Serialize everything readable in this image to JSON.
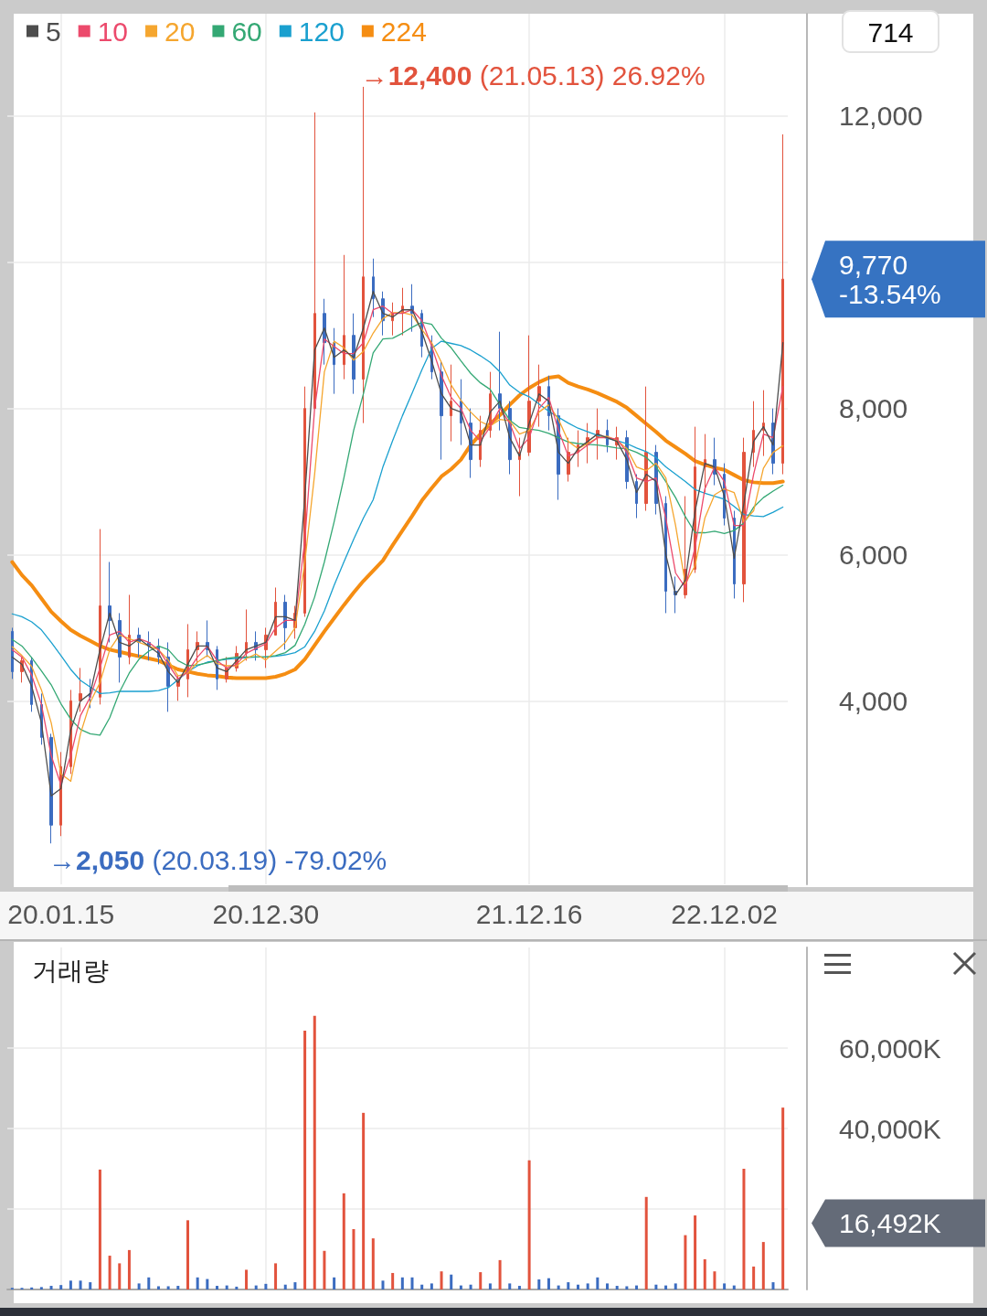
{
  "chart_data": [
    {
      "type": "candlestick",
      "categories": [
        null,
        null,
        null,
        null,
        null,
        "20.01.15",
        null,
        null,
        null,
        null,
        null,
        null,
        null,
        null,
        null,
        null,
        null,
        null,
        null,
        null,
        null,
        null,
        null,
        null,
        null,
        null,
        "20.12.30",
        null,
        null,
        null,
        null,
        null,
        null,
        null,
        null,
        null,
        null,
        null,
        null,
        null,
        null,
        null,
        null,
        null,
        null,
        null,
        null,
        null,
        null,
        null,
        null,
        null,
        null,
        "21.12.16",
        null,
        null,
        null,
        null,
        null,
        null,
        null,
        null,
        null,
        null,
        null,
        null,
        null,
        null,
        null,
        null,
        null,
        null,
        null,
        "22.12.02",
        null,
        null,
        null,
        null,
        null,
        null
      ],
      "series": [
        {
          "ohlc": [
            [
              4950,
              5000,
              4300,
              4400
            ],
            [
              4400,
              4600,
              4250,
              4550
            ],
            [
              4550,
              4600,
              3850,
              3950
            ],
            [
              3950,
              4100,
              3400,
              3500
            ],
            [
              3500,
              3550,
              2050,
              2300
            ],
            [
              2300,
              3300,
              2150,
              3100
            ],
            [
              3100,
              4150,
              3000,
              4000
            ],
            [
              4000,
              4450,
              3850,
              4100
            ],
            [
              4100,
              4300,
              3900,
              4050
            ],
            [
              4050,
              6350,
              3950,
              5300
            ],
            [
              5300,
              5900,
              4800,
              5100
            ],
            [
              5100,
              5200,
              4250,
              4600
            ],
            [
              4600,
              5450,
              4500,
              4900
            ],
            [
              4900,
              5000,
              4600,
              4800
            ],
            [
              4800,
              4950,
              4550,
              4750
            ],
            [
              4750,
              4850,
              4500,
              4600
            ],
            [
              4600,
              4800,
              3850,
              4200
            ],
            [
              4200,
              4350,
              4000,
              4300
            ],
            [
              4300,
              5050,
              4050,
              4700
            ],
            [
              4700,
              4950,
              4500,
              4800
            ],
            [
              4800,
              5100,
              4600,
              4700
            ],
            [
              4700,
              4750,
              4150,
              4300
            ],
            [
              4300,
              4600,
              4250,
              4450
            ],
            [
              4450,
              4750,
              4400,
              4650
            ],
            [
              4650,
              5250,
              4550,
              4800
            ],
            [
              4800,
              4950,
              4550,
              4700
            ],
            [
              4700,
              5000,
              4450,
              4900
            ],
            [
              4900,
              5550,
              4900,
              5350
            ],
            [
              5350,
              5450,
              4700,
              5000
            ],
            [
              5000,
              5300,
              4850,
              5200
            ],
            [
              5200,
              8300,
              5150,
              8000
            ],
            [
              8000,
              12050,
              8000,
              9300
            ],
            [
              9300,
              9500,
              8600,
              8900
            ],
            [
              8900,
              9100,
              8200,
              8600
            ],
            [
              8600,
              10100,
              8400,
              9000
            ],
            [
              9000,
              9300,
              8200,
              8400
            ],
            [
              8400,
              12400,
              7800,
              9800
            ],
            [
              9800,
              10050,
              9250,
              9500
            ],
            [
              9500,
              9600,
              9000,
              9200
            ],
            [
              9200,
              9450,
              9000,
              9300
            ],
            [
              9300,
              9650,
              9000,
              9400
            ],
            [
              9400,
              9700,
              9050,
              9300
            ],
            [
              9300,
              9350,
              8700,
              8850
            ],
            [
              8850,
              9000,
              8400,
              8500
            ],
            [
              8500,
              8650,
              7300,
              7900
            ],
            [
              7900,
              8600,
              7550,
              8100
            ],
            [
              8100,
              8400,
              7500,
              7800
            ],
            [
              7800,
              8000,
              7050,
              7300
            ],
            [
              7300,
              7900,
              7200,
              7700
            ],
            [
              7700,
              8500,
              7600,
              8200
            ],
            [
              8200,
              9050,
              7700,
              8000
            ],
            [
              8000,
              8100,
              7100,
              7300
            ],
            [
              7300,
              7600,
              6800,
              7400
            ],
            [
              7400,
              9000,
              7350,
              8100
            ],
            [
              8100,
              8600,
              7750,
              8300
            ],
            [
              8300,
              8450,
              7700,
              7900
            ],
            [
              7900,
              8000,
              6750,
              7100
            ],
            [
              7100,
              7600,
              7000,
              7400
            ],
            [
              7400,
              7700,
              7200,
              7500
            ],
            [
              7500,
              7800,
              7250,
              7600
            ],
            [
              7600,
              8000,
              7300,
              7700
            ],
            [
              7700,
              7850,
              7400,
              7500
            ],
            [
              7500,
              7750,
              7300,
              7600
            ],
            [
              7600,
              7700,
              6900,
              7000
            ],
            [
              7000,
              7100,
              6500,
              6700
            ],
            [
              6700,
              8300,
              6600,
              7400
            ],
            [
              7400,
              7500,
              6550,
              6700
            ],
            [
              6700,
              6800,
              5200,
              5500
            ],
            [
              5500,
              5700,
              5200,
              5450
            ],
            [
              5450,
              6800,
              5400,
              5800
            ],
            [
              5800,
              7750,
              5750,
              7200
            ],
            [
              7200,
              7650,
              6850,
              7300
            ],
            [
              7300,
              7600,
              6950,
              7100
            ],
            [
              7100,
              7250,
              6400,
              6500
            ],
            [
              6500,
              6600,
              5400,
              5600
            ],
            [
              5600,
              7600,
              5350,
              7400
            ],
            [
              7400,
              8100,
              7200,
              7700
            ],
            [
              7700,
              8250,
              7350,
              7800
            ],
            [
              7800,
              8000,
              7100,
              7250
            ],
            [
              7250,
              11750,
              7100,
              9770
            ]
          ],
          "colors": [
            "#3b6cc0",
            "#e2533d",
            "#3b6cc0",
            "#3b6cc0",
            "#3b6cc0",
            "#e2533d",
            "#e2533d",
            "#e2533d",
            "#3b6cc0",
            "#e2533d",
            "#3b6cc0",
            "#3b6cc0",
            "#e2533d",
            "#3b6cc0",
            "#3b6cc0",
            "#3b6cc0",
            "#3b6cc0",
            "#e2533d",
            "#e2533d",
            "#e2533d",
            "#3b6cc0",
            "#3b6cc0",
            "#e2533d",
            "#e2533d",
            "#e2533d",
            "#3b6cc0",
            "#e2533d",
            "#e2533d",
            "#3b6cc0",
            "#e2533d",
            "#e2533d",
            "#e2533d",
            "#3b6cc0",
            "#3b6cc0",
            "#e2533d",
            "#3b6cc0",
            "#e2533d",
            "#3b6cc0",
            "#3b6cc0",
            "#e2533d",
            "#e2533d",
            "#3b6cc0",
            "#3b6cc0",
            "#3b6cc0",
            "#3b6cc0",
            "#e2533d",
            "#3b6cc0",
            "#3b6cc0",
            "#e2533d",
            "#e2533d",
            "#3b6cc0",
            "#3b6cc0",
            "#e2533d",
            "#e2533d",
            "#e2533d",
            "#3b6cc0",
            "#3b6cc0",
            "#e2533d",
            "#e2533d",
            "#e2533d",
            "#e2533d",
            "#3b6cc0",
            "#e2533d",
            "#3b6cc0",
            "#3b6cc0",
            "#e2533d",
            "#3b6cc0",
            "#3b6cc0",
            "#3b6cc0",
            "#e2533d",
            "#e2533d",
            "#e2533d",
            "#3b6cc0",
            "#3b6cc0",
            "#3b6cc0",
            "#e2533d",
            "#e2533d",
            "#e2533d",
            "#3b6cc0",
            "#e2533d"
          ]
        },
        {
          "type": "line",
          "name": "5",
          "color": "#4d4d4d",
          "values": [
            4600,
            4500,
            4200,
            3700,
            2700,
            2800,
            3600,
            4000,
            4100,
            4700,
            5200,
            4800,
            4750,
            4850,
            4750,
            4650,
            4400,
            4250,
            4500,
            4750,
            4750,
            4450,
            4400,
            4550,
            4700,
            4750,
            4800,
            5150,
            5150,
            5100,
            6800,
            8800,
            9100,
            8700,
            8800,
            8700,
            9100,
            9600,
            9300,
            9250,
            9350,
            9350,
            9050,
            8650,
            8200,
            8000,
            7950,
            7500,
            7500,
            7950,
            8100,
            7600,
            7350,
            7800,
            8200,
            8100,
            7400,
            7250,
            7450,
            7550,
            7650,
            7600,
            7550,
            7300,
            6850,
            7100,
            7000,
            6000,
            5450,
            5650,
            6600,
            7250,
            7200,
            6800,
            5950,
            6700,
            7550,
            7750,
            7500,
            8900
          ]
        },
        {
          "type": "line",
          "name": "10",
          "color": "#ec4a6c",
          "values": [
            4700,
            4600,
            4350,
            3950,
            3250,
            2850,
            3250,
            3800,
            4050,
            4450,
            4900,
            4950,
            4800,
            4850,
            4800,
            4700,
            4500,
            4300,
            4400,
            4600,
            4750,
            4550,
            4450,
            4500,
            4650,
            4720,
            4780,
            5000,
            5100,
            5100,
            6200,
            8000,
            8950,
            8850,
            8750,
            8750,
            8900,
            9350,
            9400,
            9300,
            9300,
            9350,
            9200,
            8850,
            8450,
            8150,
            8000,
            7700,
            7550,
            7750,
            8000,
            7800,
            7450,
            7600,
            8000,
            8150,
            7700,
            7350,
            7400,
            7500,
            7600,
            7600,
            7580,
            7400,
            7050,
            7000,
            7050,
            6500,
            5750,
            5550,
            6100,
            6900,
            7200,
            7000,
            6400,
            6400,
            7100,
            7650,
            7600,
            8300
          ]
        },
        {
          "type": "line",
          "name": "20",
          "color": "#f5a62f",
          "values": [
            4740,
            4620,
            4470,
            4150,
            3700,
            3000,
            2900,
            3550,
            3980,
            4250,
            4700,
            4900,
            4850,
            4800,
            4750,
            4700,
            4560,
            4340,
            4380,
            4530,
            4620,
            4510,
            4480,
            4480,
            4580,
            4640,
            4560,
            4680,
            4800,
            5000,
            5900,
            7100,
            8500,
            8920,
            8830,
            8660,
            8780,
            9030,
            9230,
            9310,
            9310,
            9280,
            9080,
            8900,
            8630,
            8320,
            8110,
            7950,
            7820,
            7760,
            7850,
            7830,
            7650,
            7700,
            7950,
            8050,
            7850,
            7550,
            7450,
            7520,
            7600,
            7620,
            7560,
            7450,
            7200,
            7150,
            7250,
            7050,
            6400,
            5600,
            5850,
            6500,
            6820,
            6900,
            6850,
            6450,
            6600,
            7180,
            7400,
            7490
          ]
        },
        {
          "type": "line",
          "name": "60",
          "color": "#34a874",
          "values": [
            4840,
            4750,
            4590,
            4410,
            4220,
            3960,
            3750,
            3610,
            3550,
            3530,
            3770,
            4120,
            4380,
            4570,
            4680,
            4750,
            4700,
            4550,
            4480,
            4490,
            4520,
            4550,
            4580,
            4600,
            4600,
            4600,
            4600,
            4620,
            4660,
            4760,
            5050,
            5420,
            5900,
            6450,
            7050,
            7700,
            8200,
            8760,
            8950,
            8960,
            9030,
            9110,
            9180,
            9150,
            8960,
            8830,
            8650,
            8480,
            8350,
            8260,
            8050,
            7840,
            7740,
            7720,
            7700,
            7660,
            7600,
            7540,
            7520,
            7510,
            7500,
            7480,
            7460,
            7450,
            7400,
            7330,
            7200,
            7000,
            6780,
            6520,
            6300,
            6300,
            6320,
            6290,
            6330,
            6430,
            6650,
            6780,
            6870,
            6950
          ]
        },
        {
          "type": "line",
          "name": "120",
          "color": "#1aa0cf",
          "values": [
            5190,
            5150,
            5080,
            4970,
            4800,
            4620,
            4430,
            4280,
            4190,
            4100,
            4110,
            4130,
            4130,
            4130,
            4130,
            4140,
            4180,
            4290,
            4400,
            4480,
            4530,
            4550,
            4570,
            4580,
            4590,
            4600,
            4600,
            4610,
            4630,
            4660,
            4740,
            4950,
            5230,
            5580,
            5900,
            6210,
            6500,
            6750,
            7200,
            7560,
            7900,
            8210,
            8530,
            8820,
            8920,
            8890,
            8860,
            8800,
            8720,
            8630,
            8500,
            8320,
            8220,
            8160,
            8060,
            7960,
            7880,
            7800,
            7730,
            7680,
            7630,
            7590,
            7560,
            7520,
            7460,
            7410,
            7330,
            7200,
            7100,
            7000,
            6890,
            6840,
            6800,
            6760,
            6660,
            6550,
            6530,
            6520,
            6580,
            6650
          ]
        },
        {
          "type": "line",
          "name": "224",
          "color": "#f58d12",
          "values": [
            5900,
            5720,
            5580,
            5400,
            5220,
            5090,
            4970,
            4890,
            4820,
            4750,
            4700,
            4670,
            4640,
            4610,
            4580,
            4550,
            4490,
            4430,
            4400,
            4370,
            4350,
            4340,
            4320,
            4310,
            4310,
            4310,
            4310,
            4330,
            4370,
            4430,
            4570,
            4760,
            4950,
            5130,
            5310,
            5480,
            5640,
            5780,
            5920,
            6130,
            6330,
            6530,
            6740,
            6910,
            7070,
            7170,
            7300,
            7500,
            7650,
            7790,
            7910,
            8050,
            8180,
            8280,
            8360,
            8420,
            8440,
            8350,
            8300,
            8260,
            8210,
            8150,
            8090,
            8010,
            7900,
            7790,
            7680,
            7560,
            7470,
            7380,
            7280,
            7230,
            7190,
            7160,
            7090,
            7020,
            6990,
            6980,
            6980,
            7000
          ]
        }
      ],
      "ylim": [
        1490,
        13400
      ],
      "yticks": [
        {
          "value": 4000,
          "label": "4,000"
        },
        {
          "value": 6000,
          "label": "6,000"
        },
        {
          "value": 8000,
          "label": "8,000"
        },
        {
          "value": 10000,
          "label": null
        },
        {
          "value": 12000,
          "label": "12,000"
        }
      ],
      "grid": true,
      "legend": "top left",
      "marker": "none",
      "annotations": [
        "714",
        "→12,400 (21.05.13) 26.92%",
        "→2,050 (20.03.19) -79.02%",
        "9,770\n-13.54%"
      ]
    },
    {
      "type": "bar",
      "title": "거래량",
      "categories": [
        null,
        null,
        null,
        null,
        null,
        "20.01.15",
        null,
        null,
        null,
        null,
        null,
        null,
        null,
        null,
        null,
        null,
        null,
        null,
        null,
        null,
        null,
        null,
        null,
        null,
        null,
        null,
        "20.12.30",
        null,
        null,
        null,
        null,
        null,
        null,
        null,
        null,
        null,
        null,
        null,
        null,
        null,
        null,
        null,
        null,
        null,
        null,
        null,
        null,
        null,
        null,
        null,
        null,
        null,
        null,
        "21.12.16",
        null,
        null,
        null,
        null,
        null,
        null,
        null,
        null,
        null,
        null,
        null,
        null,
        null,
        null,
        null,
        null,
        null,
        null,
        null,
        "22.12.02",
        null,
        null,
        null,
        null,
        null,
        null
      ],
      "values": [
        400,
        400,
        500,
        600,
        900,
        1100,
        2200,
        2200,
        1800,
        29800,
        8400,
        6500,
        9800,
        1500,
        3000,
        800,
        800,
        900,
        17200,
        3000,
        2600,
        900,
        1000,
        700,
        4900,
        1000,
        1400,
        6500,
        1200,
        1800,
        64300,
        68000,
        9600,
        3000,
        23900,
        15000,
        43900,
        12700,
        2200,
        4100,
        3000,
        3000,
        1200,
        1500,
        4500,
        3700,
        1000,
        1200,
        4300,
        1500,
        7300,
        1500,
        900,
        32100,
        2500,
        2800,
        1000,
        1800,
        1200,
        1500,
        3000,
        1500,
        900,
        800,
        1000,
        23000,
        1200,
        1000,
        1500,
        13500,
        18400,
        7500,
        4500,
        1500,
        1000,
        30000,
        5700,
        11800,
        1800,
        45200
      ],
      "colors": [
        "#3b6cc0",
        "#3b6cc0",
        "#3b6cc0",
        "#3b6cc0",
        "#3b6cc0",
        "#3b6cc0",
        "#3b6cc0",
        "#3b6cc0",
        "#3b6cc0",
        "#e2533d",
        "#e2533d",
        "#e2533d",
        "#e2533d",
        "#3b6cc0",
        "#3b6cc0",
        "#3b6cc0",
        "#3b6cc0",
        "#3b6cc0",
        "#e2533d",
        "#3b6cc0",
        "#3b6cc0",
        "#3b6cc0",
        "#3b6cc0",
        "#3b6cc0",
        "#e2533d",
        "#3b6cc0",
        "#3b6cc0",
        "#e2533d",
        "#3b6cc0",
        "#3b6cc0",
        "#e2533d",
        "#e2533d",
        "#e2533d",
        "#3b6cc0",
        "#e2533d",
        "#e2533d",
        "#e2533d",
        "#e2533d",
        "#3b6cc0",
        "#e2533d",
        "#3b6cc0",
        "#3b6cc0",
        "#3b6cc0",
        "#3b6cc0",
        "#e2533d",
        "#3b6cc0",
        "#3b6cc0",
        "#3b6cc0",
        "#e2533d",
        "#3b6cc0",
        "#e2533d",
        "#3b6cc0",
        "#3b6cc0",
        "#e2533d",
        "#3b6cc0",
        "#3b6cc0",
        "#3b6cc0",
        "#3b6cc0",
        "#3b6cc0",
        "#3b6cc0",
        "#3b6cc0",
        "#3b6cc0",
        "#3b6cc0",
        "#3b6cc0",
        "#3b6cc0",
        "#e2533d",
        "#3b6cc0",
        "#3b6cc0",
        "#3b6cc0",
        "#e2533d",
        "#e2533d",
        "#e2533d",
        "#e2533d",
        "#3b6cc0",
        "#3b6cc0",
        "#e2533d",
        "#e2533d",
        "#e2533d",
        "#3b6cc0",
        "#e2533d"
      ],
      "ylim": [
        0,
        85000
      ],
      "yticks": [
        {
          "value": 20000,
          "label": null
        },
        {
          "value": 40000,
          "label": "40,000K"
        },
        {
          "value": 60000,
          "label": "60,000K"
        }
      ],
      "grid": true,
      "tick_labels": "y",
      "annotations": [
        "16,492K"
      ]
    }
  ]
}
